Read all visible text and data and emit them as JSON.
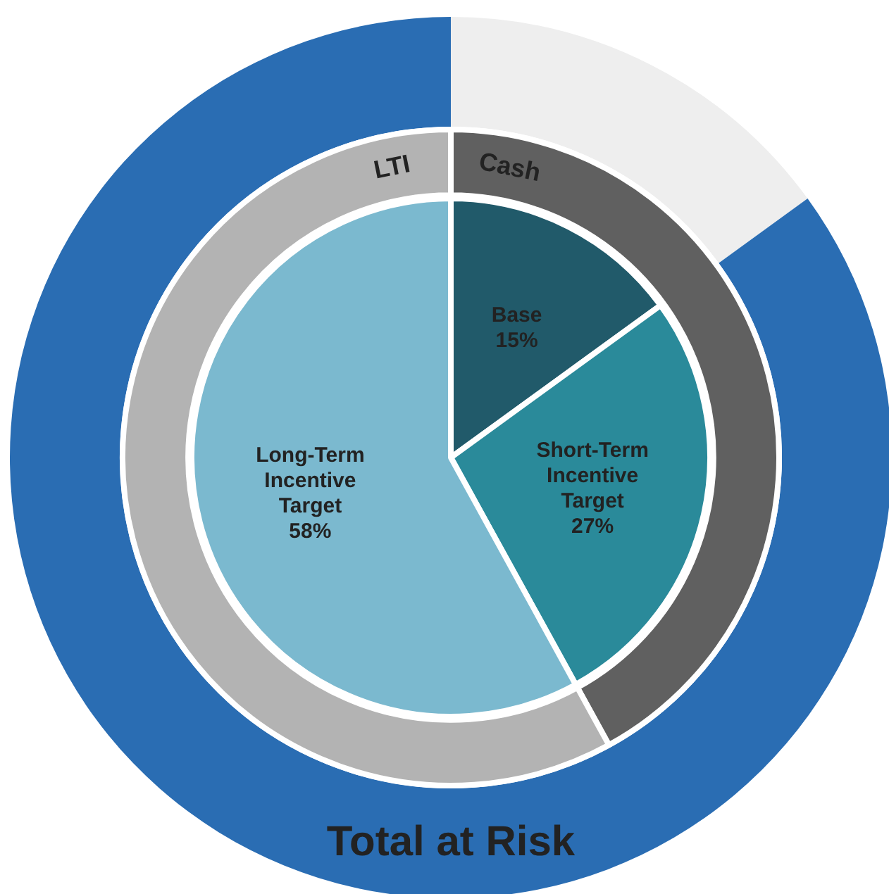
{
  "chart_data": [
    {
      "type": "pie",
      "legend": false,
      "categories": [
        "Base",
        "Short-Term\nIncentive\nTarget",
        "Long-Term\nIncentive\nTarget"
      ],
      "values": [
        15,
        27,
        58
      ],
      "colors": [
        "#215a6a",
        "#2a8a9a",
        "#7bb9cf"
      ],
      "value_labels": [
        "15%",
        "27%",
        "58%"
      ]
    },
    {
      "type": "donut",
      "legend": false,
      "categories": [
        "Cash",
        "LTI"
      ],
      "values": [
        42,
        58
      ],
      "colors": [
        "#606060",
        "#b3b3b3"
      ]
    },
    {
      "type": "donut",
      "legend": false,
      "categories": [
        null,
        "Total at Risk"
      ],
      "values": [
        15,
        85
      ],
      "colors": [
        "#eeeeee",
        "#2a6db3"
      ]
    }
  ]
}
